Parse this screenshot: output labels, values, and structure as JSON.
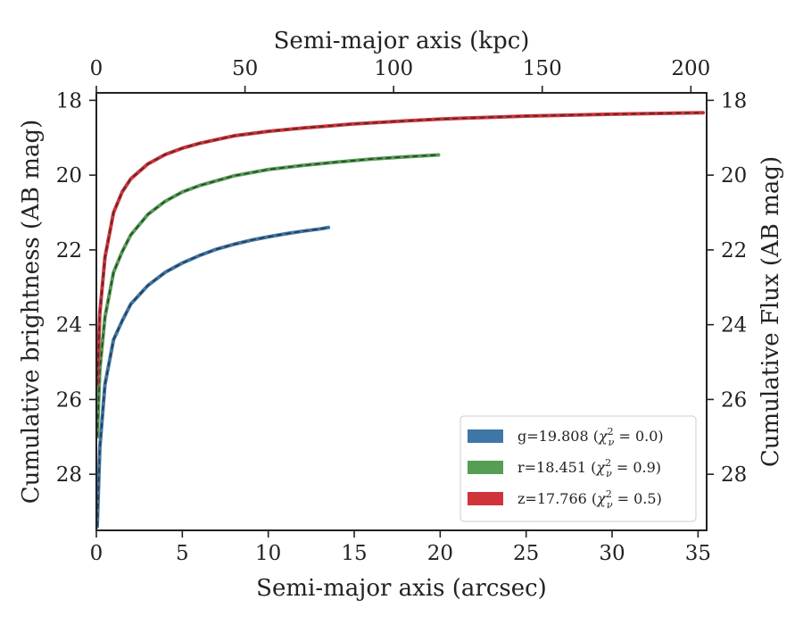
{
  "chart_data": {
    "type": "line",
    "xlabel": "Semi-major axis (arcsec)",
    "ylabel": "Cumulative brightness (AB mag)",
    "top_xlabel": "Semi-major axis (kpc)",
    "right_ylabel": "Cumulative Flux (AB mag)",
    "xlim": [
      0,
      35.5
    ],
    "ylim": [
      29.5,
      17.8
    ],
    "top_xlim": [
      0,
      205.3
    ],
    "y_inverted": true,
    "grid": false,
    "legend_position": "lower-right",
    "x_ticks": [
      0,
      5,
      10,
      15,
      20,
      25,
      30,
      35
    ],
    "x_tick_labels": [
      "0",
      "5",
      "10",
      "15",
      "20",
      "25",
      "30",
      "35"
    ],
    "y_ticks": [
      18,
      20,
      22,
      24,
      26,
      28
    ],
    "y_tick_labels": [
      "18",
      "20",
      "22",
      "24",
      "26",
      "28"
    ],
    "top_x_ticks": [
      0,
      50,
      100,
      150,
      200
    ],
    "top_x_tick_labels": [
      "0",
      "50",
      "100",
      "150",
      "200"
    ],
    "right_y_ticks": [
      18,
      20,
      22,
      24,
      26,
      28
    ],
    "right_y_tick_labels": [
      "18",
      "20",
      "22",
      "24",
      "26",
      "28"
    ],
    "series": [
      {
        "name": "g=19.808",
        "legend_chi": "0.0",
        "color": "#3f76a8",
        "x": [
          0.05,
          0.2,
          0.5,
          1.0,
          1.5,
          2.0,
          3.0,
          4.0,
          5.0,
          6.0,
          7.0,
          8.0,
          9.0,
          10.0,
          11.0,
          12.0,
          13.0,
          13.5
        ],
        "y": [
          29.4,
          27.3,
          25.6,
          24.4,
          23.9,
          23.45,
          22.95,
          22.6,
          22.35,
          22.15,
          21.98,
          21.85,
          21.74,
          21.65,
          21.57,
          21.5,
          21.44,
          21.4
        ]
      },
      {
        "name": "r=18.451",
        "legend_chi": "0.9",
        "color": "#559e54",
        "x": [
          0.05,
          0.2,
          0.5,
          1.0,
          1.5,
          2.0,
          3.0,
          4.0,
          5.0,
          6.0,
          8.0,
          10.0,
          12.0,
          14.0,
          16.0,
          18.0,
          19.9
        ],
        "y": [
          27.0,
          25.2,
          23.8,
          22.6,
          22.05,
          21.6,
          21.05,
          20.7,
          20.45,
          20.28,
          20.02,
          19.85,
          19.74,
          19.65,
          19.57,
          19.51,
          19.46
        ]
      },
      {
        "name": "z=17.766",
        "legend_chi": "0.5",
        "color": "#d0343a",
        "x": [
          0.05,
          0.2,
          0.5,
          1.0,
          1.5,
          2.0,
          3.0,
          4.0,
          5.0,
          6.0,
          8.0,
          10.0,
          12.0,
          15.0,
          18.0,
          20.0,
          25.0,
          30.0,
          35.3
        ],
        "y": [
          25.6,
          23.7,
          22.2,
          21.0,
          20.45,
          20.1,
          19.7,
          19.45,
          19.28,
          19.15,
          18.95,
          18.83,
          18.74,
          18.63,
          18.55,
          18.5,
          18.42,
          18.37,
          18.33
        ]
      }
    ]
  }
}
